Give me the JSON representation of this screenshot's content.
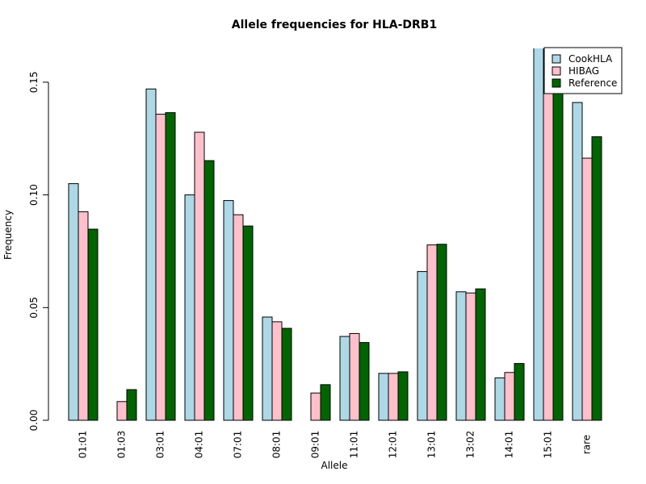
{
  "chart_data": {
    "type": "bar",
    "title": "Allele frequencies for HLA-DRB1",
    "xlabel": "Allele",
    "ylabel": "Frequency",
    "ylim": [
      0,
      0.165
    ],
    "yticks": [
      "0.00",
      "0.05",
      "0.10",
      "0.15"
    ],
    "ytick_values": [
      0,
      0.05,
      0.1,
      0.15
    ],
    "categories": [
      "01:01",
      "01:03",
      "03:01",
      "04:01",
      "07:01",
      "08:01",
      "09:01",
      "11:01",
      "12:01",
      "13:01",
      "13:02",
      "14:01",
      "15:01",
      "rare"
    ],
    "series": [
      {
        "name": "CookHLA",
        "color": "#add8e6",
        "values": [
          0.105,
          0.0,
          0.147,
          0.1,
          0.0975,
          0.0458,
          0.0,
          0.0372,
          0.0208,
          0.066,
          0.057,
          0.0188,
          0.175,
          0.141
        ]
      },
      {
        "name": "HIBAG",
        "color": "#ffc0cb",
        "values": [
          0.0925,
          0.0083,
          0.1358,
          0.1278,
          0.0912,
          0.0437,
          0.0121,
          0.0385,
          0.0208,
          0.0778,
          0.0565,
          0.0212,
          0.159,
          0.1163
        ]
      },
      {
        "name": "Reference",
        "color": "#006400",
        "values": [
          0.0848,
          0.0136,
          0.1365,
          0.1152,
          0.0862,
          0.0408,
          0.0158,
          0.0345,
          0.0215,
          0.0781,
          0.0583,
          0.0252,
          0.161,
          0.1258
        ]
      }
    ],
    "legend_position": "top-right",
    "grid": false
  }
}
